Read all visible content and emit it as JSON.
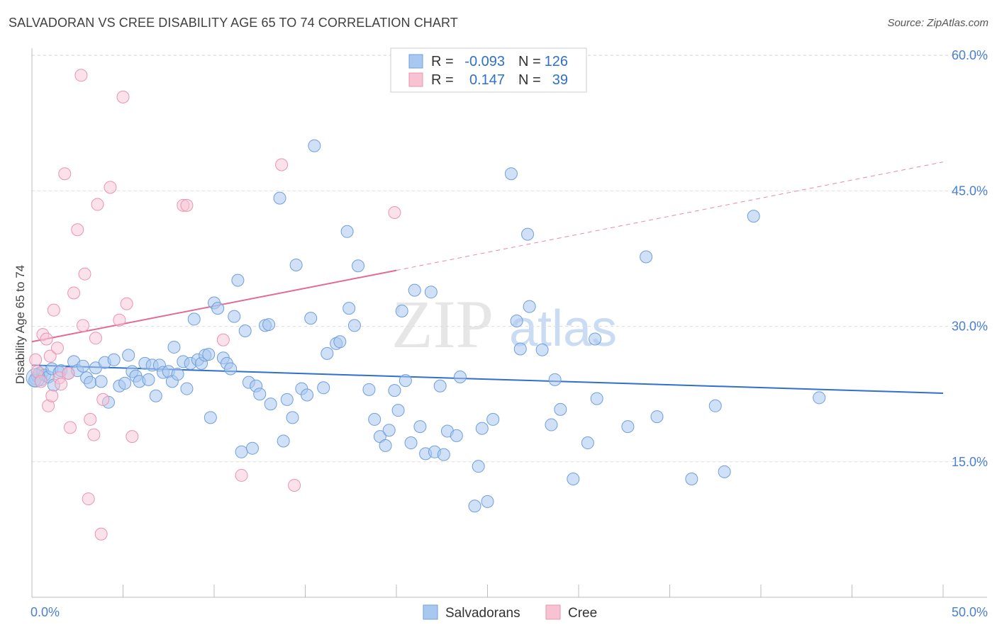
{
  "title": "SALVADORAN VS CREE DISABILITY AGE 65 TO 74 CORRELATION CHART",
  "source": "Source: ZipAtlas.com",
  "watermark": {
    "zip": "ZIP",
    "atlas": "atlas"
  },
  "colors": {
    "blue_fill": "#a9c8f0",
    "blue_stroke": "#6f9fdc",
    "blue_line": "#2f6fcd",
    "pink_fill": "#f7c3d3",
    "pink_stroke": "#e994b0",
    "pink_line": "#e36a92",
    "tick_label": "#4a7fd4",
    "grid": "#dcdcdc"
  },
  "legend_top": {
    "rows": [
      {
        "r_label": "R =",
        "r_value": "-0.093",
        "n_label": "N =",
        "n_value": "126"
      },
      {
        "r_label": "R =",
        "r_value": "0.147",
        "n_label": "N =",
        "n_value": "39"
      }
    ]
  },
  "legend_bottom": [
    "Salvadorans",
    "Cree"
  ],
  "chart_data": {
    "type": "scatter",
    "ylabel": "Disability Age 65 to 74",
    "xlim": [
      0,
      50
    ],
    "ylim": [
      0,
      61
    ],
    "x_tick_labels": [
      "0.0%",
      "50.0%"
    ],
    "y_ticks": [
      15,
      30,
      45,
      60
    ],
    "y_tick_labels": [
      "15.0%",
      "30.0%",
      "45.0%",
      "60.0%"
    ],
    "grid": "horizontal dashed",
    "series": [
      {
        "name": "Salvadorans",
        "trend": {
          "x": [
            0,
            50
          ],
          "y": [
            25.7,
            22.6
          ]
        },
        "points": [
          [
            0.2,
            24.2
          ],
          [
            0.3,
            24.5
          ],
          [
            0.4,
            24.8
          ],
          [
            0.5,
            24.1
          ],
          [
            0.6,
            25.0
          ],
          [
            0.7,
            24.6
          ],
          [
            0.9,
            24.4
          ],
          [
            1.1,
            25.3
          ],
          [
            1.2,
            23.5
          ],
          [
            1.5,
            24.9
          ],
          [
            1.6,
            25.1
          ],
          [
            2.0,
            24.8
          ],
          [
            2.3,
            26.1
          ],
          [
            2.5,
            25.1
          ],
          [
            2.8,
            25.6
          ],
          [
            3.0,
            24.3
          ],
          [
            3.2,
            23.8
          ],
          [
            3.5,
            25.4
          ],
          [
            3.8,
            23.9
          ],
          [
            4.0,
            26.0
          ],
          [
            4.2,
            21.6
          ],
          [
            4.5,
            26.3
          ],
          [
            4.8,
            23.4
          ],
          [
            5.1,
            23.7
          ],
          [
            5.3,
            26.8
          ],
          [
            5.5,
            25.0
          ],
          [
            5.7,
            24.5
          ],
          [
            5.9,
            23.9
          ],
          [
            6.2,
            25.9
          ],
          [
            6.4,
            24.1
          ],
          [
            6.6,
            25.7
          ],
          [
            6.8,
            22.3
          ],
          [
            7.0,
            25.7
          ],
          [
            7.2,
            24.9
          ],
          [
            7.5,
            25.0
          ],
          [
            7.7,
            23.9
          ],
          [
            7.8,
            27.7
          ],
          [
            8.0,
            24.7
          ],
          [
            8.3,
            26.1
          ],
          [
            8.5,
            23.1
          ],
          [
            8.7,
            25.9
          ],
          [
            8.9,
            30.8
          ],
          [
            9.1,
            26.3
          ],
          [
            9.3,
            25.9
          ],
          [
            9.5,
            26.8
          ],
          [
            9.7,
            26.9
          ],
          [
            9.8,
            19.9
          ],
          [
            10.0,
            32.6
          ],
          [
            10.2,
            32.0
          ],
          [
            10.5,
            26.5
          ],
          [
            10.7,
            25.9
          ],
          [
            10.9,
            25.3
          ],
          [
            11.1,
            31.1
          ],
          [
            11.3,
            35.1
          ],
          [
            11.5,
            16.1
          ],
          [
            11.7,
            29.5
          ],
          [
            11.9,
            23.8
          ],
          [
            12.1,
            16.5
          ],
          [
            12.3,
            23.4
          ],
          [
            12.5,
            22.5
          ],
          [
            12.8,
            30.1
          ],
          [
            13.0,
            30.2
          ],
          [
            13.1,
            21.4
          ],
          [
            13.6,
            44.2
          ],
          [
            13.8,
            17.3
          ],
          [
            14.0,
            21.9
          ],
          [
            14.3,
            19.9
          ],
          [
            14.5,
            36.8
          ],
          [
            14.8,
            23.1
          ],
          [
            15.1,
            22.4
          ],
          [
            15.3,
            30.9
          ],
          [
            15.5,
            50.0
          ],
          [
            16.0,
            23.2
          ],
          [
            16.2,
            27.0
          ],
          [
            16.7,
            28.1
          ],
          [
            16.9,
            28.3
          ],
          [
            17.3,
            40.5
          ],
          [
            17.4,
            32.0
          ],
          [
            17.7,
            30.1
          ],
          [
            17.9,
            36.7
          ],
          [
            18.5,
            23.0
          ],
          [
            18.8,
            19.7
          ],
          [
            19.1,
            17.8
          ],
          [
            19.4,
            16.8
          ],
          [
            19.6,
            18.5
          ],
          [
            19.9,
            22.9
          ],
          [
            20.1,
            20.7
          ],
          [
            20.3,
            31.7
          ],
          [
            20.5,
            24.0
          ],
          [
            20.8,
            17.1
          ],
          [
            21.0,
            34.0
          ],
          [
            21.3,
            18.9
          ],
          [
            21.6,
            15.9
          ],
          [
            21.9,
            33.8
          ],
          [
            22.1,
            16.1
          ],
          [
            22.4,
            23.4
          ],
          [
            22.6,
            15.8
          ],
          [
            22.8,
            18.4
          ],
          [
            23.3,
            17.9
          ],
          [
            23.5,
            24.4
          ],
          [
            24.3,
            10.1
          ],
          [
            24.5,
            14.5
          ],
          [
            24.7,
            18.7
          ],
          [
            25.0,
            10.6
          ],
          [
            25.3,
            19.7
          ],
          [
            26.3,
            46.9
          ],
          [
            26.6,
            30.6
          ],
          [
            26.8,
            27.5
          ],
          [
            27.2,
            40.2
          ],
          [
            27.3,
            32.2
          ],
          [
            28.0,
            27.4
          ],
          [
            28.5,
            19.1
          ],
          [
            28.7,
            24.1
          ],
          [
            29.0,
            20.8
          ],
          [
            29.7,
            13.1
          ],
          [
            30.5,
            17.1
          ],
          [
            30.9,
            28.6
          ],
          [
            31.0,
            22.0
          ],
          [
            32.7,
            18.9
          ],
          [
            33.7,
            37.7
          ],
          [
            34.3,
            20.0
          ],
          [
            36.2,
            13.1
          ],
          [
            37.5,
            21.2
          ],
          [
            38.0,
            13.9
          ],
          [
            39.6,
            42.2
          ],
          [
            43.2,
            22.1
          ],
          [
            0.15,
            24.0
          ]
        ]
      },
      {
        "name": "Cree",
        "trend": {
          "x": [
            0,
            20
          ],
          "y": [
            28.3,
            36.2
          ],
          "dashed_x": [
            20,
            50
          ],
          "dashed_y": [
            36.2,
            48.2
          ]
        },
        "points": [
          [
            0.2,
            26.3
          ],
          [
            0.3,
            25.0
          ],
          [
            0.5,
            23.9
          ],
          [
            0.6,
            29.1
          ],
          [
            0.8,
            28.6
          ],
          [
            0.9,
            21.2
          ],
          [
            1.0,
            26.7
          ],
          [
            1.2,
            31.8
          ],
          [
            1.4,
            27.6
          ],
          [
            1.5,
            24.3
          ],
          [
            1.6,
            23.6
          ],
          [
            1.8,
            46.9
          ],
          [
            2.0,
            24.8
          ],
          [
            2.1,
            18.8
          ],
          [
            2.3,
            33.7
          ],
          [
            2.5,
            40.7
          ],
          [
            2.7,
            57.8
          ],
          [
            2.8,
            30.1
          ],
          [
            2.9,
            35.8
          ],
          [
            3.1,
            10.9
          ],
          [
            3.2,
            19.7
          ],
          [
            3.4,
            18.0
          ],
          [
            3.5,
            28.7
          ],
          [
            3.6,
            43.5
          ],
          [
            3.8,
            7.0
          ],
          [
            3.9,
            21.9
          ],
          [
            4.3,
            45.4
          ],
          [
            4.8,
            30.7
          ],
          [
            5.0,
            55.4
          ],
          [
            5.2,
            32.5
          ],
          [
            5.5,
            17.8
          ],
          [
            8.3,
            43.4
          ],
          [
            8.5,
            43.4
          ],
          [
            10.5,
            28.5
          ],
          [
            11.5,
            13.5
          ],
          [
            13.7,
            47.9
          ],
          [
            14.4,
            12.4
          ],
          [
            19.9,
            42.6
          ],
          [
            1.1,
            22.3
          ]
        ]
      }
    ]
  }
}
